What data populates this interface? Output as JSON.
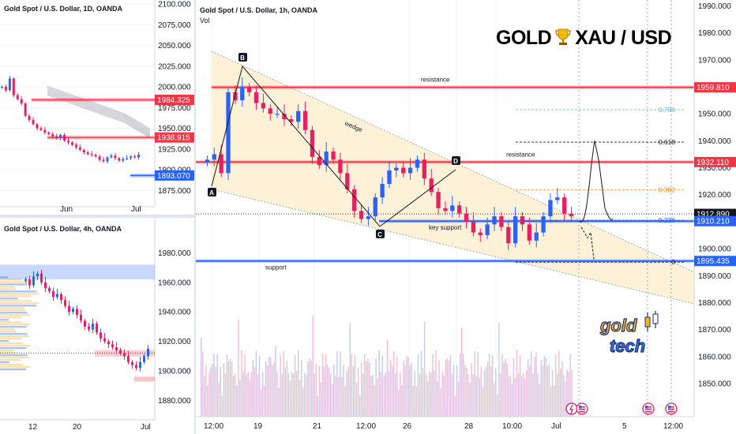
{
  "daily": {
    "title": "Gold Spot / U.S. Dollar, 1D, OANDA",
    "price_ticks": [
      "2100.000",
      "2075.000",
      "2050.000",
      "2025.000",
      "2000.000",
      "1975.000",
      "1950.000",
      "1925.000",
      "1900.000",
      "1875.000"
    ],
    "time_ticks": [
      "Jun",
      "Jul"
    ],
    "badges": [
      {
        "value": "1984.325",
        "color": "#f23645"
      },
      {
        "value": "1938.915",
        "color": "#f23645"
      },
      {
        "value": "1893.070",
        "color": "#2962ff"
      }
    ]
  },
  "h4": {
    "title": "Gold Spot / U.S. Dollar, 4h, OANDA",
    "price_ticks": [
      "1980.000",
      "1960.000",
      "1940.000",
      "1920.000",
      "1900.000",
      "1880.000"
    ],
    "time_ticks": [
      "12",
      "20",
      "Jul"
    ]
  },
  "main": {
    "title": "Gold Spot / U.S. Dollar, 1h, OANDA",
    "vol_label": "Vol",
    "headline_left": "GOLD",
    "headline_right": "XAU / USD",
    "price_ticks": [
      "1990.000",
      "1980.000",
      "1970.000",
      "1960.000",
      "1950.000",
      "1940.000",
      "1930.000",
      "1920.000",
      "1910.000",
      "1900.000",
      "1890.000",
      "1880.000",
      "1870.000",
      "1860.000",
      "1850.000"
    ],
    "time_ticks": [
      "12:00",
      "19",
      "21",
      "12:00",
      "26",
      "28",
      "10:00",
      "Jul",
      "5",
      "12:00"
    ],
    "badges": [
      {
        "value": "1959.810",
        "color": "#f23645"
      },
      {
        "value": "1932.110",
        "color": "#f23645"
      },
      {
        "value": "1912.890",
        "color": "#131722"
      },
      {
        "value": "1910.210",
        "color": "#2962ff"
      },
      {
        "value": "1895.435",
        "color": "#2962ff"
      }
    ],
    "annotations": {
      "resistance_top": "resistance",
      "resistance_mid": "resistance",
      "wedge": "wedge",
      "key_support": "key support",
      "support": "support"
    },
    "points": [
      "A",
      "B",
      "C",
      "D"
    ],
    "fib_levels": [
      "0.786",
      "0.618",
      "0.382",
      "0.236",
      "0"
    ],
    "logo_top": "gold",
    "logo_bottom": "tech",
    "colors": {
      "resistance": "#f23645",
      "support": "#2962ff",
      "up": "#2962ff",
      "down": "#e91e63",
      "wedge": "#fdf1d8"
    }
  },
  "chart_data": [
    {
      "type": "line",
      "title": "Gold Spot / U.S. Dollar, 1D, OANDA",
      "series": [
        {
          "values": [
            2000,
            1996,
            2010,
            1990,
            1985,
            1980,
            1965,
            1960,
            1955,
            1950,
            1948,
            1945,
            1943,
            1940,
            1938,
            1942,
            1935,
            1933,
            1930,
            1927,
            1924,
            1921,
            1919,
            1918,
            1916,
            1912,
            1910,
            1915,
            1917,
            1914,
            1911,
            1913,
            1914,
            1916,
            1915,
            1918
          ]
        }
      ],
      "ylim": [
        1862,
        2100
      ],
      "xlabel": "",
      "ylabel": ""
    },
    {
      "type": "line",
      "title": "Gold Spot / U.S. Dollar, 4h, OANDA",
      "series": [
        {
          "values": [
            1962,
            1958,
            1964,
            1966,
            1960,
            1956,
            1954,
            1950,
            1952,
            1948,
            1944,
            1940,
            1942,
            1938,
            1934,
            1930,
            1928,
            1932,
            1926,
            1922,
            1920,
            1918,
            1916,
            1914,
            1912,
            1910,
            1906,
            1904,
            1902,
            1906,
            1910,
            1915
          ]
        }
      ],
      "ylim": [
        1870,
        1992
      ],
      "xlabel": "",
      "ylabel": ""
    },
    {
      "type": "line",
      "title": "Gold Spot / U.S. Dollar, 1h, OANDA",
      "series": [
        {
          "values": [
            1933,
            1935,
            1928,
            1958,
            1955,
            1960,
            1958,
            1954,
            1952,
            1950,
            1950,
            1948,
            1947,
            1951,
            1944,
            1934,
            1931,
            1936,
            1933,
            1928,
            1922,
            1914,
            1911,
            1912,
            1919,
            1924,
            1929,
            1930,
            1928,
            1930,
            1933,
            1926,
            1921,
            1915,
            1914,
            1916,
            1913,
            1910,
            1906,
            1905,
            1909,
            1912,
            1908,
            1902,
            1912,
            1909,
            1903,
            1906,
            1912,
            1918,
            1919,
            1913,
            1912
          ]
        }
      ],
      "ylim": [
        1843,
        1991
      ],
      "xlabel": "",
      "ylabel": ""
    }
  ]
}
